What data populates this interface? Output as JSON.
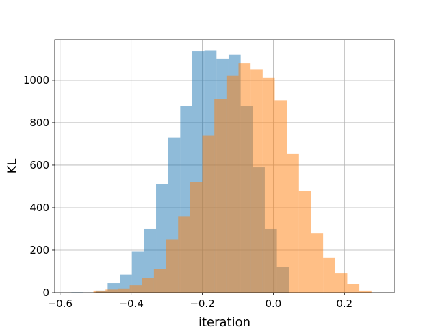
{
  "chart_data": {
    "type": "bar",
    "subtype": "overlaid-histogram",
    "title": "",
    "xlabel": "iteration",
    "ylabel": "KL",
    "xlim": [
      -0.615,
      0.34
    ],
    "ylim": [
      0,
      1190
    ],
    "grid": true,
    "legend": "none",
    "xticks": [
      -0.6,
      -0.4,
      -0.2,
      0.0,
      0.2
    ],
    "xtick_labels": [
      "−0.6",
      "−0.4",
      "−0.2",
      "0.0",
      "0.2"
    ],
    "yticks": [
      0,
      200,
      400,
      600,
      800,
      1000
    ],
    "ytick_labels": [
      "0",
      "200",
      "400",
      "600",
      "800",
      "1000"
    ],
    "series": [
      {
        "color": "#1f77b4",
        "opacity": 0.5,
        "bin_edges": [
          -0.568,
          -0.534,
          -0.5,
          -0.466,
          -0.432,
          -0.398,
          -0.364,
          -0.33,
          -0.296,
          -0.262,
          -0.228,
          -0.194,
          -0.16,
          -0.126,
          -0.092,
          -0.058,
          -0.024,
          0.01,
          0.044
        ],
        "counts": [
          2,
          0,
          10,
          45,
          85,
          195,
          300,
          510,
          730,
          880,
          1135,
          1140,
          1100,
          1120,
          880,
          590,
          300,
          120
        ]
      },
      {
        "color": "#ff7f0e",
        "opacity": 0.5,
        "bin_edges": [
          -0.506,
          -0.472,
          -0.438,
          -0.404,
          -0.37,
          -0.336,
          -0.302,
          -0.268,
          -0.234,
          -0.2,
          -0.166,
          -0.132,
          -0.098,
          -0.064,
          -0.03,
          0.004,
          0.038,
          0.072,
          0.106,
          0.14,
          0.174,
          0.208,
          0.242,
          0.276
        ],
        "counts": [
          10,
          15,
          20,
          35,
          70,
          110,
          250,
          360,
          520,
          740,
          910,
          1020,
          1080,
          1050,
          1010,
          905,
          655,
          480,
          280,
          165,
          90,
          40,
          10,
          2
        ]
      }
    ]
  }
}
